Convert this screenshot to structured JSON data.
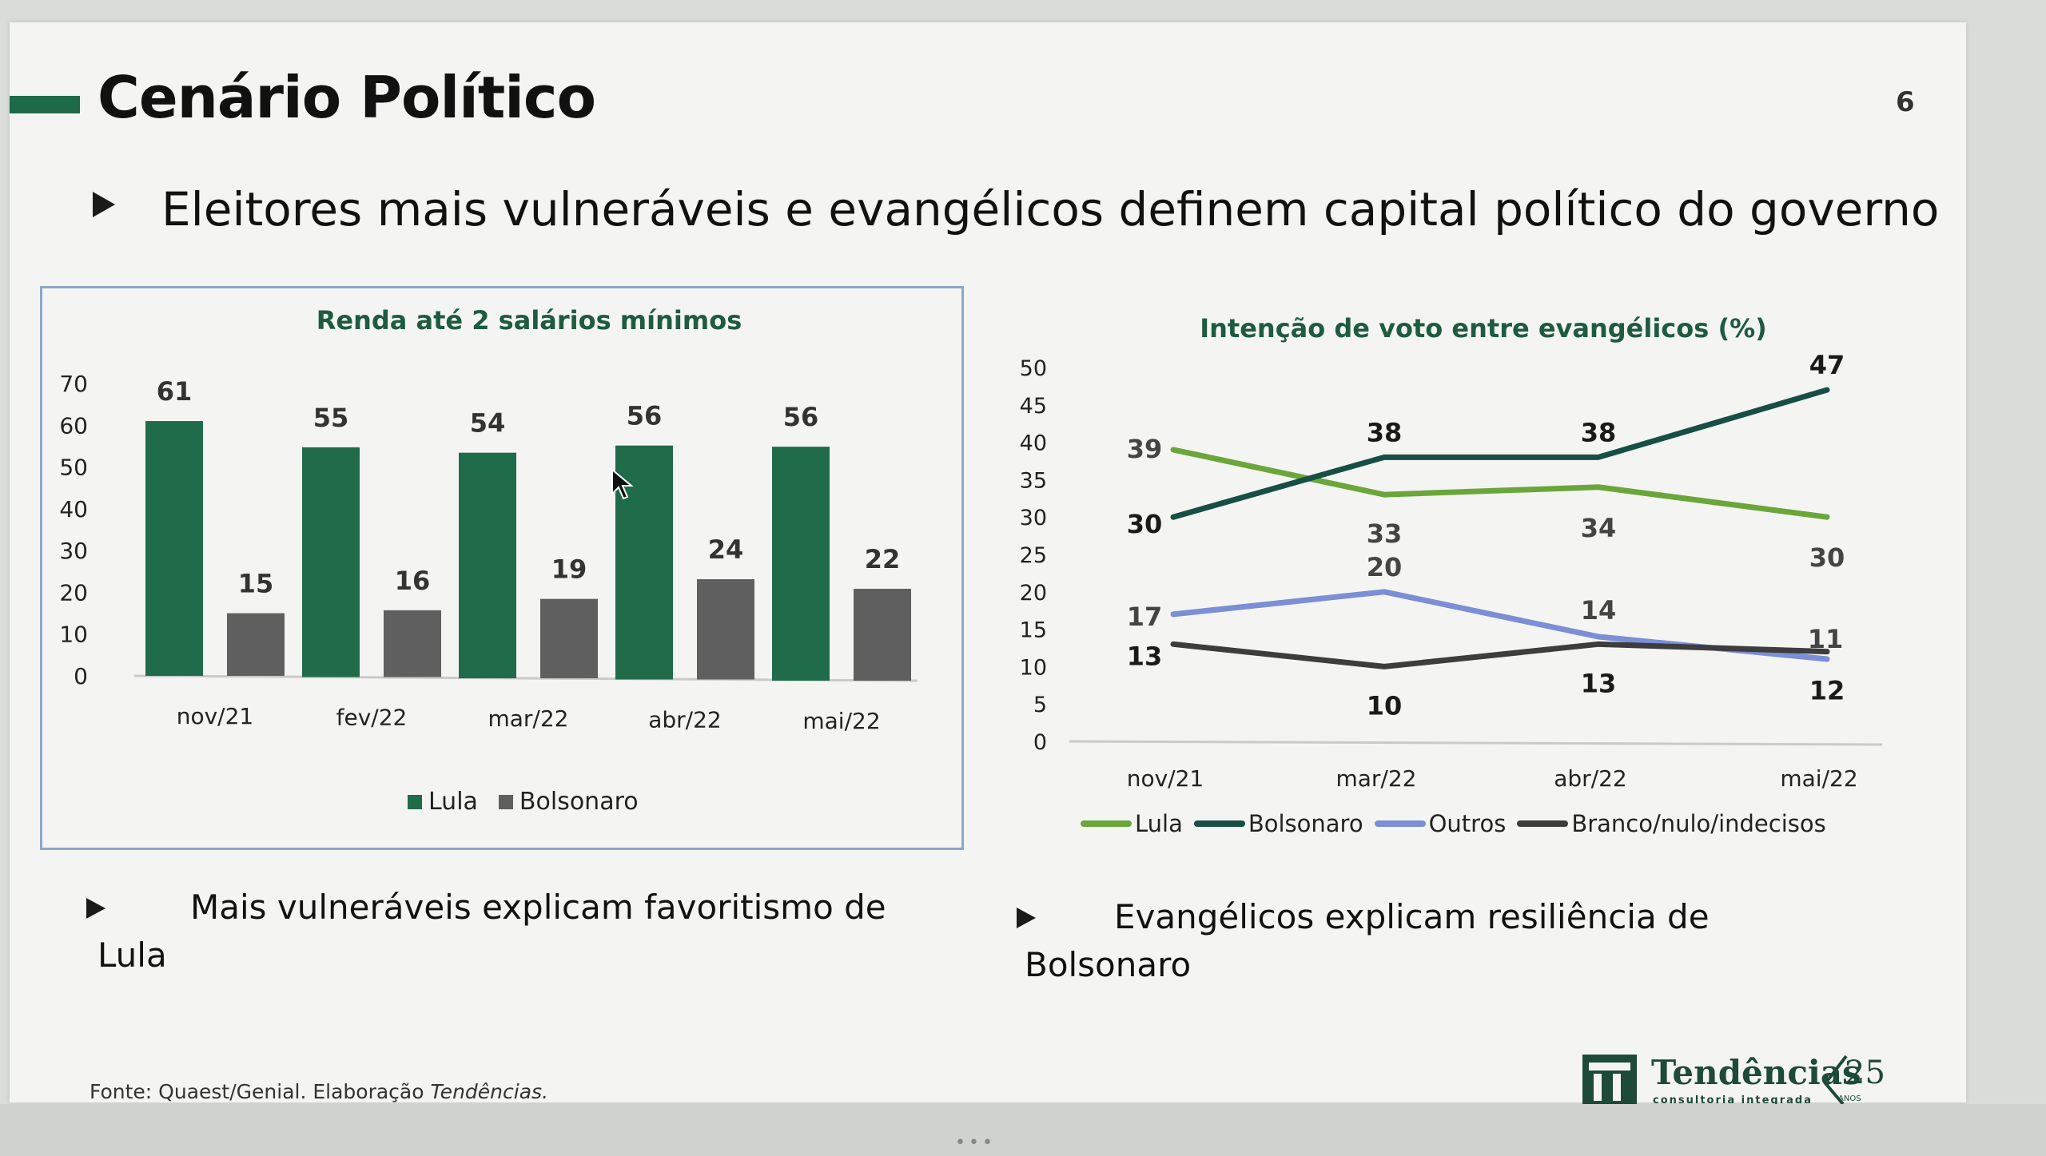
{
  "slide": {
    "title": "Cenário Político",
    "page_number": "6",
    "subtitle": "Eleitores mais vulneráveis e evangélicos definem capital político do governo",
    "note_left_line1": "Mais vulneráveis explicam favoritismo de",
    "note_left_line2": "Lula",
    "note_right_line1": "Evangélicos explicam resiliência de",
    "note_right_line2": "Bolsonaro",
    "source_prefix": "Fonte: Quaest/Genial. Elaboração ",
    "source_org": "Tendências.",
    "logo_name": "Tendências",
    "logo_tagline": "consultoria integrada",
    "logo_badge_number": "25",
    "logo_badge_text": "ANOS",
    "colors": {
      "accent": "#1e6a48",
      "lula_bar": "#1f6b4a",
      "bolsonaro_bar": "#5f5f5f",
      "lula_line": "#6aa63a",
      "bolsonaro_line": "#174f44",
      "outros_line": "#7b8ed6",
      "branco_line": "#3d3d3d"
    }
  },
  "chart_data": [
    {
      "type": "bar",
      "title": "Renda até 2 salários mínimos",
      "categories": [
        "nov/21",
        "fev/22",
        "mar/22",
        "abr/22",
        "mai/22"
      ],
      "series": [
        {
          "name": "Lula",
          "values": [
            61,
            55,
            54,
            56,
            56
          ]
        },
        {
          "name": "Bolsonaro",
          "values": [
            15,
            16,
            19,
            24,
            22
          ]
        }
      ],
      "ylim": [
        0,
        70
      ],
      "yticks": [
        0,
        10,
        20,
        30,
        40,
        50,
        60,
        70
      ],
      "legend": "bottom",
      "grid": false
    },
    {
      "type": "line",
      "title": "Intenção de voto entre evangélicos (%)",
      "categories": [
        "nov/21",
        "mar/22",
        "abr/22",
        "mai/22"
      ],
      "series": [
        {
          "name": "Lula",
          "values": [
            39,
            33,
            34,
            30
          ]
        },
        {
          "name": "Bolsonaro",
          "values": [
            30,
            38,
            38,
            47
          ]
        },
        {
          "name": "Outros",
          "values": [
            17,
            20,
            14,
            11
          ]
        },
        {
          "name": "Branco/nulo/indecisos",
          "values": [
            13,
            10,
            13,
            12
          ]
        }
      ],
      "ylim": [
        0,
        50
      ],
      "yticks": [
        0,
        5,
        10,
        15,
        20,
        25,
        30,
        35,
        40,
        45,
        50
      ],
      "legend": "bottom",
      "grid": false
    }
  ]
}
